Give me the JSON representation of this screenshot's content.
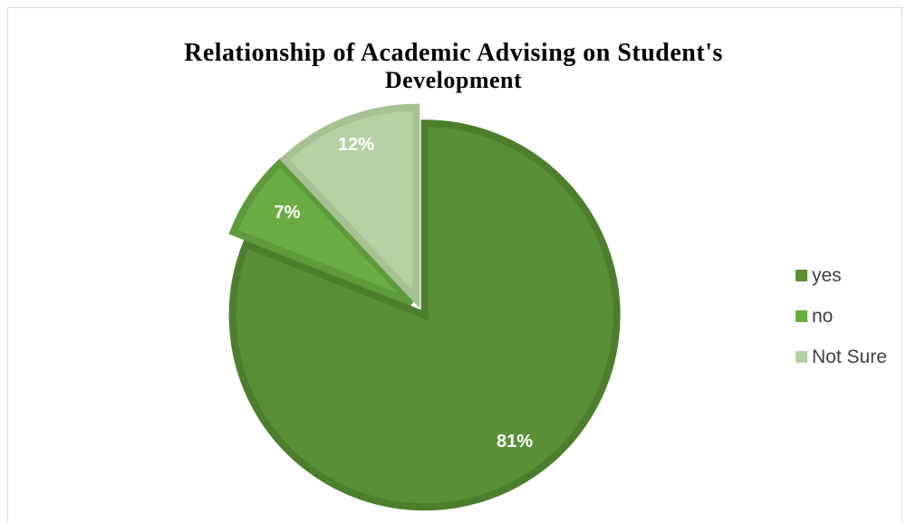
{
  "chart_data": {
    "type": "pie",
    "title_lines": [
      "Relationship of Academic Advising on Student's",
      "Development"
    ],
    "categories": [
      "yes",
      "no",
      "Not Sure"
    ],
    "values": [
      81,
      7,
      12
    ],
    "data_labels": [
      "81%",
      "7%",
      "12%"
    ],
    "colors": [
      "#5a8f37",
      "#6cac45",
      "#b5d0a4"
    ],
    "border_colors": [
      "#4d7e2e",
      "#5e9a3b",
      "#a6c294"
    ],
    "legend_position": "right",
    "start_angle_deg": 0,
    "direction": "clockwise",
    "exploded": true
  }
}
